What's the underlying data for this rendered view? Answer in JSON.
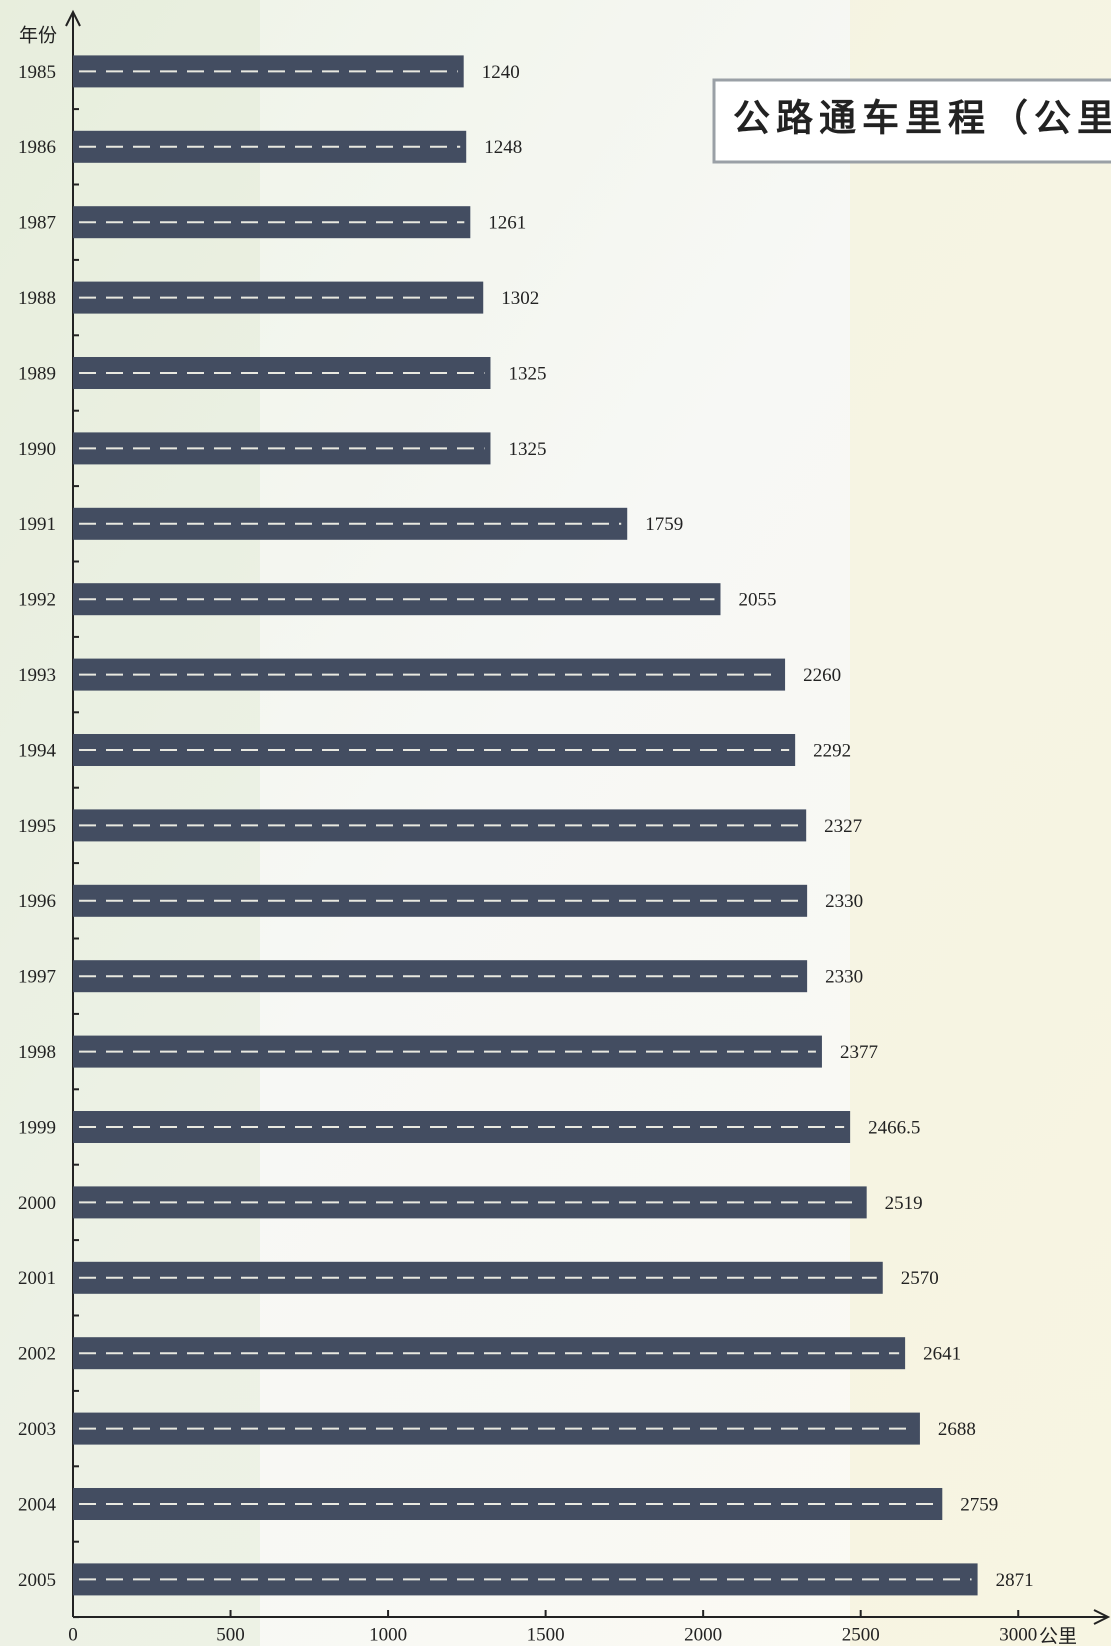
{
  "chart_data": {
    "type": "bar",
    "orientation": "horizontal",
    "title": "公路通车里程（公里）",
    "y_label": "年份",
    "x_label": "公里",
    "categories": [
      "1985",
      "1986",
      "1987",
      "1988",
      "1989",
      "1990",
      "1991",
      "1992",
      "1993",
      "1994",
      "1995",
      "1996",
      "1997",
      "1998",
      "1999",
      "2000",
      "2001",
      "2002",
      "2003",
      "2004",
      "2005"
    ],
    "values": [
      1240,
      1248,
      1261,
      1302,
      1325,
      1325,
      1759,
      2055,
      2260,
      2292,
      2327,
      2330,
      2330,
      2377,
      2466.5,
      2519,
      2570,
      2641,
      2688,
      2759,
      2871
    ],
    "color": "#434d61",
    "xlim": [
      0,
      3250
    ],
    "xticks": [
      0,
      500,
      1000,
      1500,
      2000,
      2500,
      3000
    ]
  }
}
